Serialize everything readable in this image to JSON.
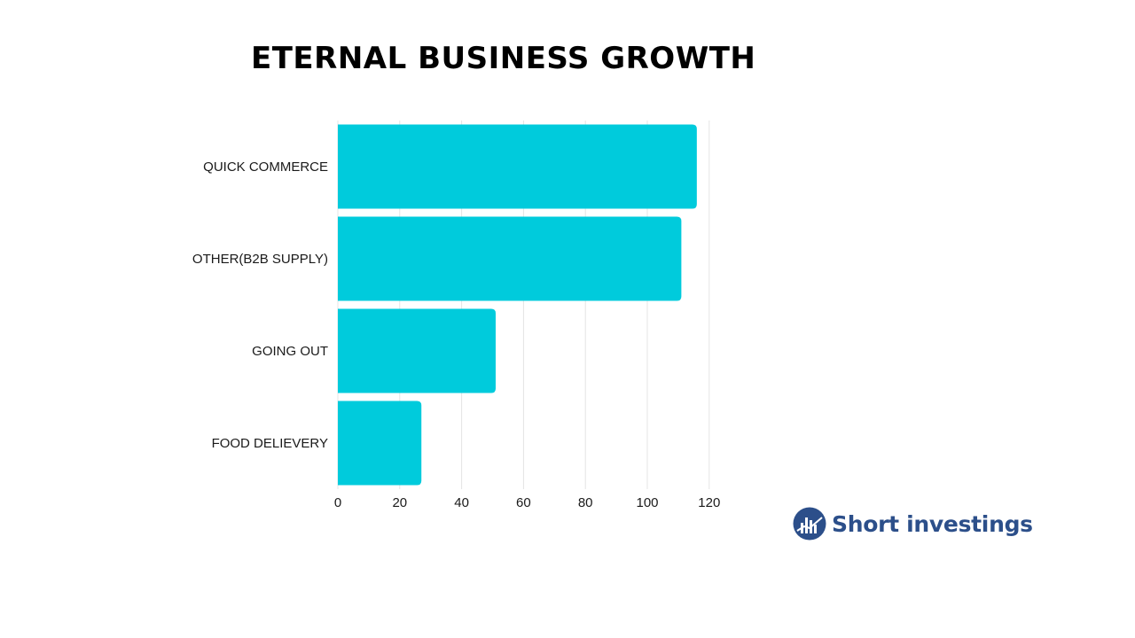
{
  "chart_data": {
    "type": "bar",
    "orientation": "horizontal",
    "title": "ETERNAL BUSINESS GROWTH",
    "categories": [
      "QUICK COMMERCE",
      "OTHER(B2B SUPPLY)",
      "GOING OUT",
      "FOOD DELIEVERY"
    ],
    "values": [
      116,
      111,
      51,
      27
    ],
    "xlim": [
      0,
      120
    ],
    "xticks": [
      0,
      20,
      40,
      60,
      80,
      100,
      120
    ],
    "grid": true,
    "bar_color": "#00CBDC",
    "grid_color": "#e4e4e4"
  },
  "brand": {
    "name": "Short investings",
    "color": "#2c4f8a",
    "icon": "bar-chart-logo-icon"
  }
}
